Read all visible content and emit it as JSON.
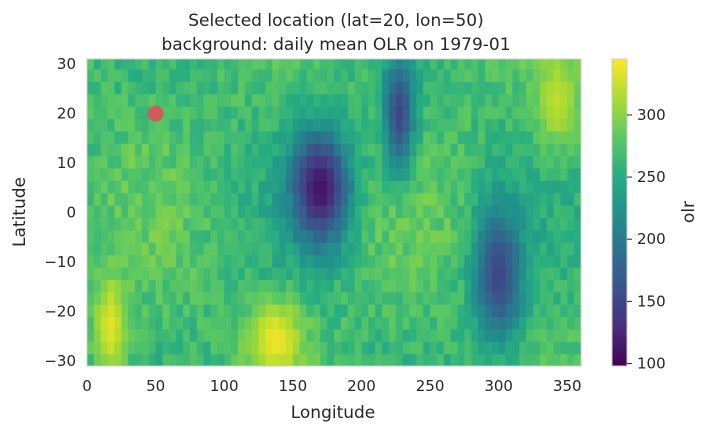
{
  "chart_data": {
    "type": "heatmap",
    "title": "Selected location (lat=20, lon=50)",
    "subtitle": "background: daily mean OLR on 1979-01",
    "xlabel": "Longitude",
    "ylabel": "Latitude",
    "xlim": [
      0,
      360
    ],
    "ylim": [
      -31,
      31
    ],
    "x_ticks": [
      "0",
      "50",
      "100",
      "150",
      "200",
      "250",
      "300",
      "350"
    ],
    "y_ticks": [
      "30",
      "20",
      "10",
      "0",
      "−10",
      "−20",
      "−30"
    ],
    "colorbar": {
      "label": "olr",
      "range": [
        98,
        345
      ],
      "ticks": [
        "300",
        "250",
        "200",
        "150",
        "100"
      ],
      "colormap": "viridis"
    },
    "grid": false,
    "marker": {
      "lon": 50,
      "lat": 20,
      "color": "#cd5c5c"
    },
    "field_description_values": {
      "lon_step": 5,
      "lat_step": 2.5,
      "low_olr_regions": [
        {
          "lon_range": [
            150,
            190
          ],
          "lat_range": [
            -5,
            15
          ],
          "min_olr": 110
        },
        {
          "lon_range": [
            220,
            235
          ],
          "lat_range": [
            10,
            30
          ],
          "min_olr": 150
        },
        {
          "lon_range": [
            285,
            315
          ],
          "lat_range": [
            -25,
            0
          ],
          "min_olr": 150
        }
      ],
      "high_olr_regions": [
        {
          "lon_range": [
            120,
            155
          ],
          "lat_range": [
            -31,
            -20
          ],
          "max_olr": 340
        },
        {
          "lon_range": [
            10,
            25
          ],
          "lat_range": [
            -31,
            -15
          ],
          "max_olr": 335
        },
        {
          "lon_range": [
            330,
            355
          ],
          "lat_range": [
            15,
            30
          ],
          "max_olr": 320
        }
      ]
    }
  }
}
